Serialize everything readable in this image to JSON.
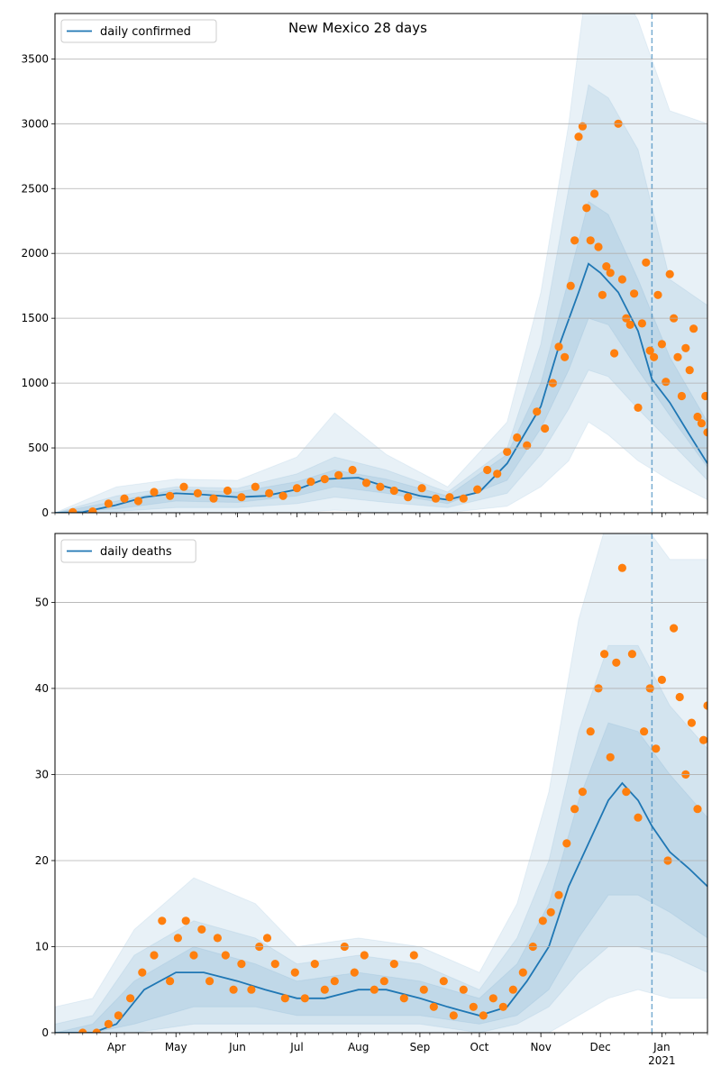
{
  "colors": {
    "line": "#1f77b4",
    "points": "#ff7f0e",
    "band": "#1f77b4",
    "grid": "#b0b0b0",
    "vline": "#1f77b4"
  },
  "chart_data": [
    {
      "type": "line",
      "title": "New Mexico 28 days",
      "legend_position": "top-left",
      "grid": "y",
      "x_range": [
        "2020-03-01",
        "2021-01-24"
      ],
      "ylim": [
        0,
        3850
      ],
      "y_ticks": [
        "0",
        "500",
        "1000",
        "1500",
        "2000",
        "2500",
        "3000",
        "3500"
      ],
      "x_tick_labels": [],
      "vline_date": "2020-12-27",
      "series": [
        {
          "name": "daily confirmed",
          "x": [
            "2020-03-01",
            "2020-03-15",
            "2020-04-01",
            "2020-04-15",
            "2020-05-01",
            "2020-05-15",
            "2020-06-01",
            "2020-06-15",
            "2020-07-01",
            "2020-07-15",
            "2020-08-01",
            "2020-08-15",
            "2020-09-01",
            "2020-09-15",
            "2020-10-01",
            "2020-10-15",
            "2020-11-01",
            "2020-11-10",
            "2020-11-20",
            "2020-11-25",
            "2020-12-01",
            "2020-12-10",
            "2020-12-20",
            "2020-12-27",
            "2021-01-05",
            "2021-01-15",
            "2021-01-24"
          ],
          "values": [
            0,
            5,
            60,
            120,
            150,
            140,
            120,
            130,
            180,
            260,
            270,
            200,
            130,
            100,
            160,
            380,
            820,
            1280,
            1700,
            1920,
            1850,
            1700,
            1400,
            1030,
            850,
            600,
            380
          ]
        }
      ],
      "observed": {
        "x": [
          "2020-03-10",
          "2020-03-20",
          "2020-03-28",
          "2020-04-05",
          "2020-04-12",
          "2020-04-20",
          "2020-04-28",
          "2020-05-05",
          "2020-05-12",
          "2020-05-20",
          "2020-05-27",
          "2020-06-03",
          "2020-06-10",
          "2020-06-17",
          "2020-06-24",
          "2020-07-01",
          "2020-07-08",
          "2020-07-15",
          "2020-07-22",
          "2020-07-29",
          "2020-08-05",
          "2020-08-12",
          "2020-08-19",
          "2020-08-26",
          "2020-09-02",
          "2020-09-09",
          "2020-09-16",
          "2020-09-23",
          "2020-09-30",
          "2020-10-05",
          "2020-10-10",
          "2020-10-15",
          "2020-10-20",
          "2020-10-25",
          "2020-10-30",
          "2020-11-03",
          "2020-11-07",
          "2020-11-10",
          "2020-11-13",
          "2020-11-16",
          "2020-11-18",
          "2020-11-20",
          "2020-11-22",
          "2020-11-24",
          "2020-11-26",
          "2020-11-28",
          "2020-11-30",
          "2020-12-02",
          "2020-12-04",
          "2020-12-06",
          "2020-12-08",
          "2020-12-10",
          "2020-12-12",
          "2020-12-14",
          "2020-12-16",
          "2020-12-18",
          "2020-12-20",
          "2020-12-22",
          "2020-12-24",
          "2020-12-26",
          "2020-12-28",
          "2020-12-30",
          "2021-01-01",
          "2021-01-03",
          "2021-01-05",
          "2021-01-07",
          "2021-01-09",
          "2021-01-11",
          "2021-01-13",
          "2021-01-15",
          "2021-01-17",
          "2021-01-19",
          "2021-01-21",
          "2021-01-23",
          "2021-01-24"
        ],
        "values": [
          5,
          10,
          70,
          110,
          90,
          160,
          130,
          200,
          150,
          110,
          170,
          120,
          200,
          150,
          130,
          190,
          240,
          260,
          290,
          330,
          230,
          200,
          170,
          120,
          190,
          110,
          120,
          110,
          180,
          330,
          300,
          470,
          580,
          520,
          780,
          650,
          1000,
          1280,
          1200,
          1750,
          2100,
          2900,
          2980,
          2350,
          2100,
          2460,
          2050,
          1680,
          1900,
          1850,
          1230,
          3000,
          1800,
          1500,
          1450,
          1690,
          810,
          1460,
          1930,
          1250,
          1200,
          1680,
          1300,
          1010,
          1840,
          1500,
          1200,
          900,
          1270,
          1100,
          1420,
          740,
          690,
          900,
          620
        ]
      },
      "bands": [
        {
          "x": [
            "2020-03-01",
            "2020-04-01",
            "2020-05-01",
            "2020-06-01",
            "2020-07-01",
            "2020-07-20",
            "2020-08-15",
            "2020-09-15",
            "2020-10-15",
            "2020-11-01",
            "2020-11-15",
            "2020-11-25",
            "2020-12-05",
            "2020-12-20",
            "2021-01-05",
            "2021-01-24"
          ],
          "low": [
            0,
            0,
            0,
            0,
            0,
            20,
            0,
            0,
            50,
            200,
            400,
            700,
            600,
            400,
            250,
            100
          ],
          "high": [
            0,
            200,
            260,
            250,
            430,
            770,
            450,
            200,
            700,
            1700,
            3000,
            4200,
            4200,
            3800,
            3100,
            3000
          ]
        },
        {
          "x": [
            "2020-03-01",
            "2020-04-01",
            "2020-05-01",
            "2020-06-01",
            "2020-07-01",
            "2020-07-20",
            "2020-08-15",
            "2020-09-15",
            "2020-10-15",
            "2020-11-01",
            "2020-11-15",
            "2020-11-25",
            "2020-12-05",
            "2020-12-20",
            "2021-01-05",
            "2021-01-24"
          ],
          "low": [
            0,
            10,
            40,
            40,
            70,
            120,
            80,
            40,
            150,
            450,
            800,
            1100,
            1050,
            800,
            550,
            250
          ],
          "high": [
            0,
            130,
            200,
            190,
            300,
            430,
            330,
            160,
            500,
            1300,
            2500,
            3300,
            3200,
            2800,
            1800,
            1600
          ]
        },
        {
          "x": [
            "2020-03-01",
            "2020-04-01",
            "2020-05-01",
            "2020-06-01",
            "2020-07-01",
            "2020-07-20",
            "2020-08-15",
            "2020-09-15",
            "2020-10-15",
            "2020-11-01",
            "2020-11-15",
            "2020-11-25",
            "2020-12-05",
            "2020-12-20",
            "2021-01-05",
            "2021-01-24"
          ],
          "low": [
            0,
            30,
            90,
            80,
            130,
            200,
            150,
            70,
            250,
            650,
            1100,
            1500,
            1450,
            1100,
            750,
            350
          ],
          "high": [
            0,
            90,
            180,
            160,
            240,
            330,
            260,
            130,
            450,
            1000,
            1800,
            2400,
            2300,
            1800,
            1200,
            700
          ]
        }
      ]
    },
    {
      "type": "line",
      "title": "",
      "legend_position": "top-left",
      "grid": "y",
      "x_range": [
        "2020-03-01",
        "2021-01-24"
      ],
      "ylim": [
        0,
        58
      ],
      "y_ticks": [
        "0",
        "10",
        "20",
        "30",
        "40",
        "50"
      ],
      "x_tick_labels": [
        "Apr",
        "May",
        "Jun",
        "Jul",
        "Aug",
        "Sep",
        "Oct",
        "Nov",
        "Dec",
        "Jan\n2021"
      ],
      "vline_date": "2020-12-27",
      "series": [
        {
          "name": "daily deaths",
          "x": [
            "2020-03-01",
            "2020-03-20",
            "2020-04-01",
            "2020-04-15",
            "2020-05-01",
            "2020-05-15",
            "2020-06-01",
            "2020-06-15",
            "2020-07-01",
            "2020-07-15",
            "2020-08-01",
            "2020-08-15",
            "2020-09-01",
            "2020-09-15",
            "2020-10-01",
            "2020-10-15",
            "2020-10-25",
            "2020-11-05",
            "2020-11-15",
            "2020-11-25",
            "2020-12-05",
            "2020-12-12",
            "2020-12-20",
            "2020-12-27",
            "2021-01-05",
            "2021-01-15",
            "2021-01-24"
          ],
          "values": [
            0,
            0,
            1,
            5,
            7,
            7,
            6,
            5,
            4,
            4,
            5,
            5,
            4,
            3,
            2,
            3,
            6,
            10,
            17,
            22,
            27,
            29,
            27,
            24,
            21,
            19,
            17
          ]
        }
      ],
      "observed": {
        "x": [
          "2020-03-15",
          "2020-03-22",
          "2020-03-28",
          "2020-04-02",
          "2020-04-08",
          "2020-04-14",
          "2020-04-20",
          "2020-04-24",
          "2020-04-28",
          "2020-05-02",
          "2020-05-06",
          "2020-05-10",
          "2020-05-14",
          "2020-05-18",
          "2020-05-22",
          "2020-05-26",
          "2020-05-30",
          "2020-06-03",
          "2020-06-08",
          "2020-06-12",
          "2020-06-16",
          "2020-06-20",
          "2020-06-25",
          "2020-06-30",
          "2020-07-05",
          "2020-07-10",
          "2020-07-15",
          "2020-07-20",
          "2020-07-25",
          "2020-07-30",
          "2020-08-04",
          "2020-08-09",
          "2020-08-14",
          "2020-08-19",
          "2020-08-24",
          "2020-08-29",
          "2020-09-03",
          "2020-09-08",
          "2020-09-13",
          "2020-09-18",
          "2020-09-23",
          "2020-09-28",
          "2020-10-03",
          "2020-10-08",
          "2020-10-13",
          "2020-10-18",
          "2020-10-23",
          "2020-10-28",
          "2020-11-02",
          "2020-11-06",
          "2020-11-10",
          "2020-11-14",
          "2020-11-18",
          "2020-11-22",
          "2020-11-26",
          "2020-11-30",
          "2020-12-03",
          "2020-12-06",
          "2020-12-09",
          "2020-12-12",
          "2020-12-14",
          "2020-12-17",
          "2020-12-20",
          "2020-12-23",
          "2020-12-26",
          "2020-12-29",
          "2021-01-01",
          "2021-01-04",
          "2021-01-07",
          "2021-01-10",
          "2021-01-13",
          "2021-01-16",
          "2021-01-19",
          "2021-01-22",
          "2021-01-24"
        ],
        "values": [
          0,
          0,
          1,
          2,
          4,
          7,
          9,
          13,
          6,
          11,
          13,
          9,
          12,
          6,
          11,
          9,
          5,
          8,
          5,
          10,
          11,
          8,
          4,
          7,
          4,
          8,
          5,
          6,
          10,
          7,
          9,
          5,
          6,
          8,
          4,
          9,
          5,
          3,
          6,
          2,
          5,
          3,
          2,
          4,
          3,
          5,
          7,
          10,
          13,
          14,
          16,
          22,
          26,
          28,
          35,
          40,
          44,
          32,
          43,
          54,
          28,
          44,
          25,
          35,
          40,
          33,
          41,
          20,
          47,
          39,
          30,
          36,
          26,
          34,
          38
        ]
      },
      "bands": [
        {
          "x": [
            "2020-03-01",
            "2020-03-20",
            "2020-04-10",
            "2020-05-10",
            "2020-06-10",
            "2020-07-01",
            "2020-08-01",
            "2020-09-01",
            "2020-10-01",
            "2020-10-20",
            "2020-11-05",
            "2020-11-20",
            "2020-12-05",
            "2020-12-20",
            "2021-01-05",
            "2021-01-24"
          ],
          "low": [
            0,
            0,
            0,
            0,
            0,
            0,
            0,
            0,
            0,
            0,
            0,
            2,
            4,
            5,
            4,
            4
          ],
          "high": [
            3,
            4,
            12,
            18,
            15,
            10,
            11,
            10,
            7,
            15,
            28,
            48,
            60,
            60,
            55,
            55
          ]
        },
        {
          "x": [
            "2020-03-01",
            "2020-03-20",
            "2020-04-10",
            "2020-05-10",
            "2020-06-10",
            "2020-07-01",
            "2020-08-01",
            "2020-09-01",
            "2020-10-01",
            "2020-10-20",
            "2020-11-05",
            "2020-11-20",
            "2020-12-05",
            "2020-12-20",
            "2021-01-05",
            "2021-01-24"
          ],
          "low": [
            0,
            0,
            0,
            1,
            1,
            1,
            1,
            1,
            0,
            1,
            3,
            7,
            10,
            10,
            9,
            7
          ],
          "high": [
            1,
            2,
            9,
            13,
            11,
            8,
            9,
            8,
            5,
            11,
            20,
            35,
            45,
            45,
            38,
            33
          ]
        },
        {
          "x": [
            "2020-03-01",
            "2020-03-20",
            "2020-04-10",
            "2020-05-10",
            "2020-06-10",
            "2020-07-01",
            "2020-08-01",
            "2020-09-01",
            "2020-10-01",
            "2020-10-20",
            "2020-11-05",
            "2020-11-20",
            "2020-12-05",
            "2020-12-20",
            "2021-01-05",
            "2021-01-24"
          ],
          "low": [
            0,
            0,
            1,
            3,
            3,
            2,
            2,
            2,
            1,
            2,
            5,
            11,
            16,
            16,
            14,
            11
          ],
          "high": [
            0,
            1,
            6,
            10,
            8,
            6,
            7,
            6,
            4,
            8,
            15,
            27,
            36,
            35,
            30,
            25
          ]
        }
      ]
    }
  ]
}
